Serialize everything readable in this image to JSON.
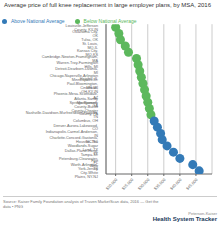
{
  "chart_data": {
    "type": "scatter",
    "title": "Average price of full knee replacement in large employer plans, by MSA, 2016",
    "categories": [
      "Louisville-Jefferson County, KY-IN",
      "Oklahoma City, OK",
      "Tulsa, OK",
      "St. Louis, MO-IL",
      "Kansas City, MO-KS",
      "Cambridge-Newton-Framingham, MA",
      "Warren-Troy-Farmington Hills, MI",
      "Detroit-Dearborn-Livonia, MI",
      "Chicago-Naperville-Arlington Heights, IL",
      "Minneapolis-St. Paul-Bloomington, MN-WI",
      "Cincinnati, OH-KY-IN",
      "Phoenix-Mesa-Scottsdale, AZ",
      "Atlanta-Sandy Springs-Roswell, GA",
      "Montgomery County-Bucks County-Chester County, PA",
      "Nashville-Davidson-Murfreesboro-Franklin, TN",
      "Columbus, OH",
      "Denver-Aurora-Lakewood, CO",
      "Indianapolis-Carmel-Anderson, IN",
      "Charlotte-Concord-Gastonia, NC-SC",
      "Houston-The Woodlands-Sugar Land, TX",
      "Dallas-Plano-Irving, TX",
      "Tampa-St. Petersburg-Clearwater, FL",
      "Fort Worth-Arlington, TX",
      "New York-Jersey City-White Plains, NY-NJ"
    ],
    "series": [
      {
        "name": "Below National Average",
        "color": "#5cb85c",
        "values": [
          20000,
          21000,
          21500,
          23000,
          24000,
          26500,
          27000,
          27500,
          28000,
          28500,
          29000,
          29500,
          30000,
          30500,
          31000,
          null,
          null,
          null,
          null,
          null,
          null,
          null,
          null,
          null
        ]
      },
      {
        "name": "Above National Average",
        "color": "#337ab7",
        "values": [
          null,
          null,
          null,
          null,
          null,
          null,
          null,
          null,
          null,
          null,
          null,
          null,
          null,
          null,
          null,
          32000,
          33000,
          34000,
          34500,
          36000,
          38000,
          40000,
          44000,
          46000
        ]
      }
    ],
    "xlim": [
      17000,
      50000
    ],
    "xticks": [
      {
        "value": 20000,
        "label": "$20,000"
      },
      {
        "value": 25000,
        "label": "$25,000"
      },
      {
        "value": 30000,
        "label": "$30,000"
      },
      {
        "value": 35000,
        "label": "$35,000"
      },
      {
        "value": 40000,
        "label": "$40,000"
      },
      {
        "value": 45000,
        "label": "$45,000"
      }
    ],
    "grid": true,
    "legend": "upper left",
    "annotations": [
      "Source: Kaiser Family Foundation analysis of Truven MarketScan data, 2016 — Get the\ndata • PNG",
      "Peterson-Kaiser",
      "Health System Tracker"
    ]
  }
}
